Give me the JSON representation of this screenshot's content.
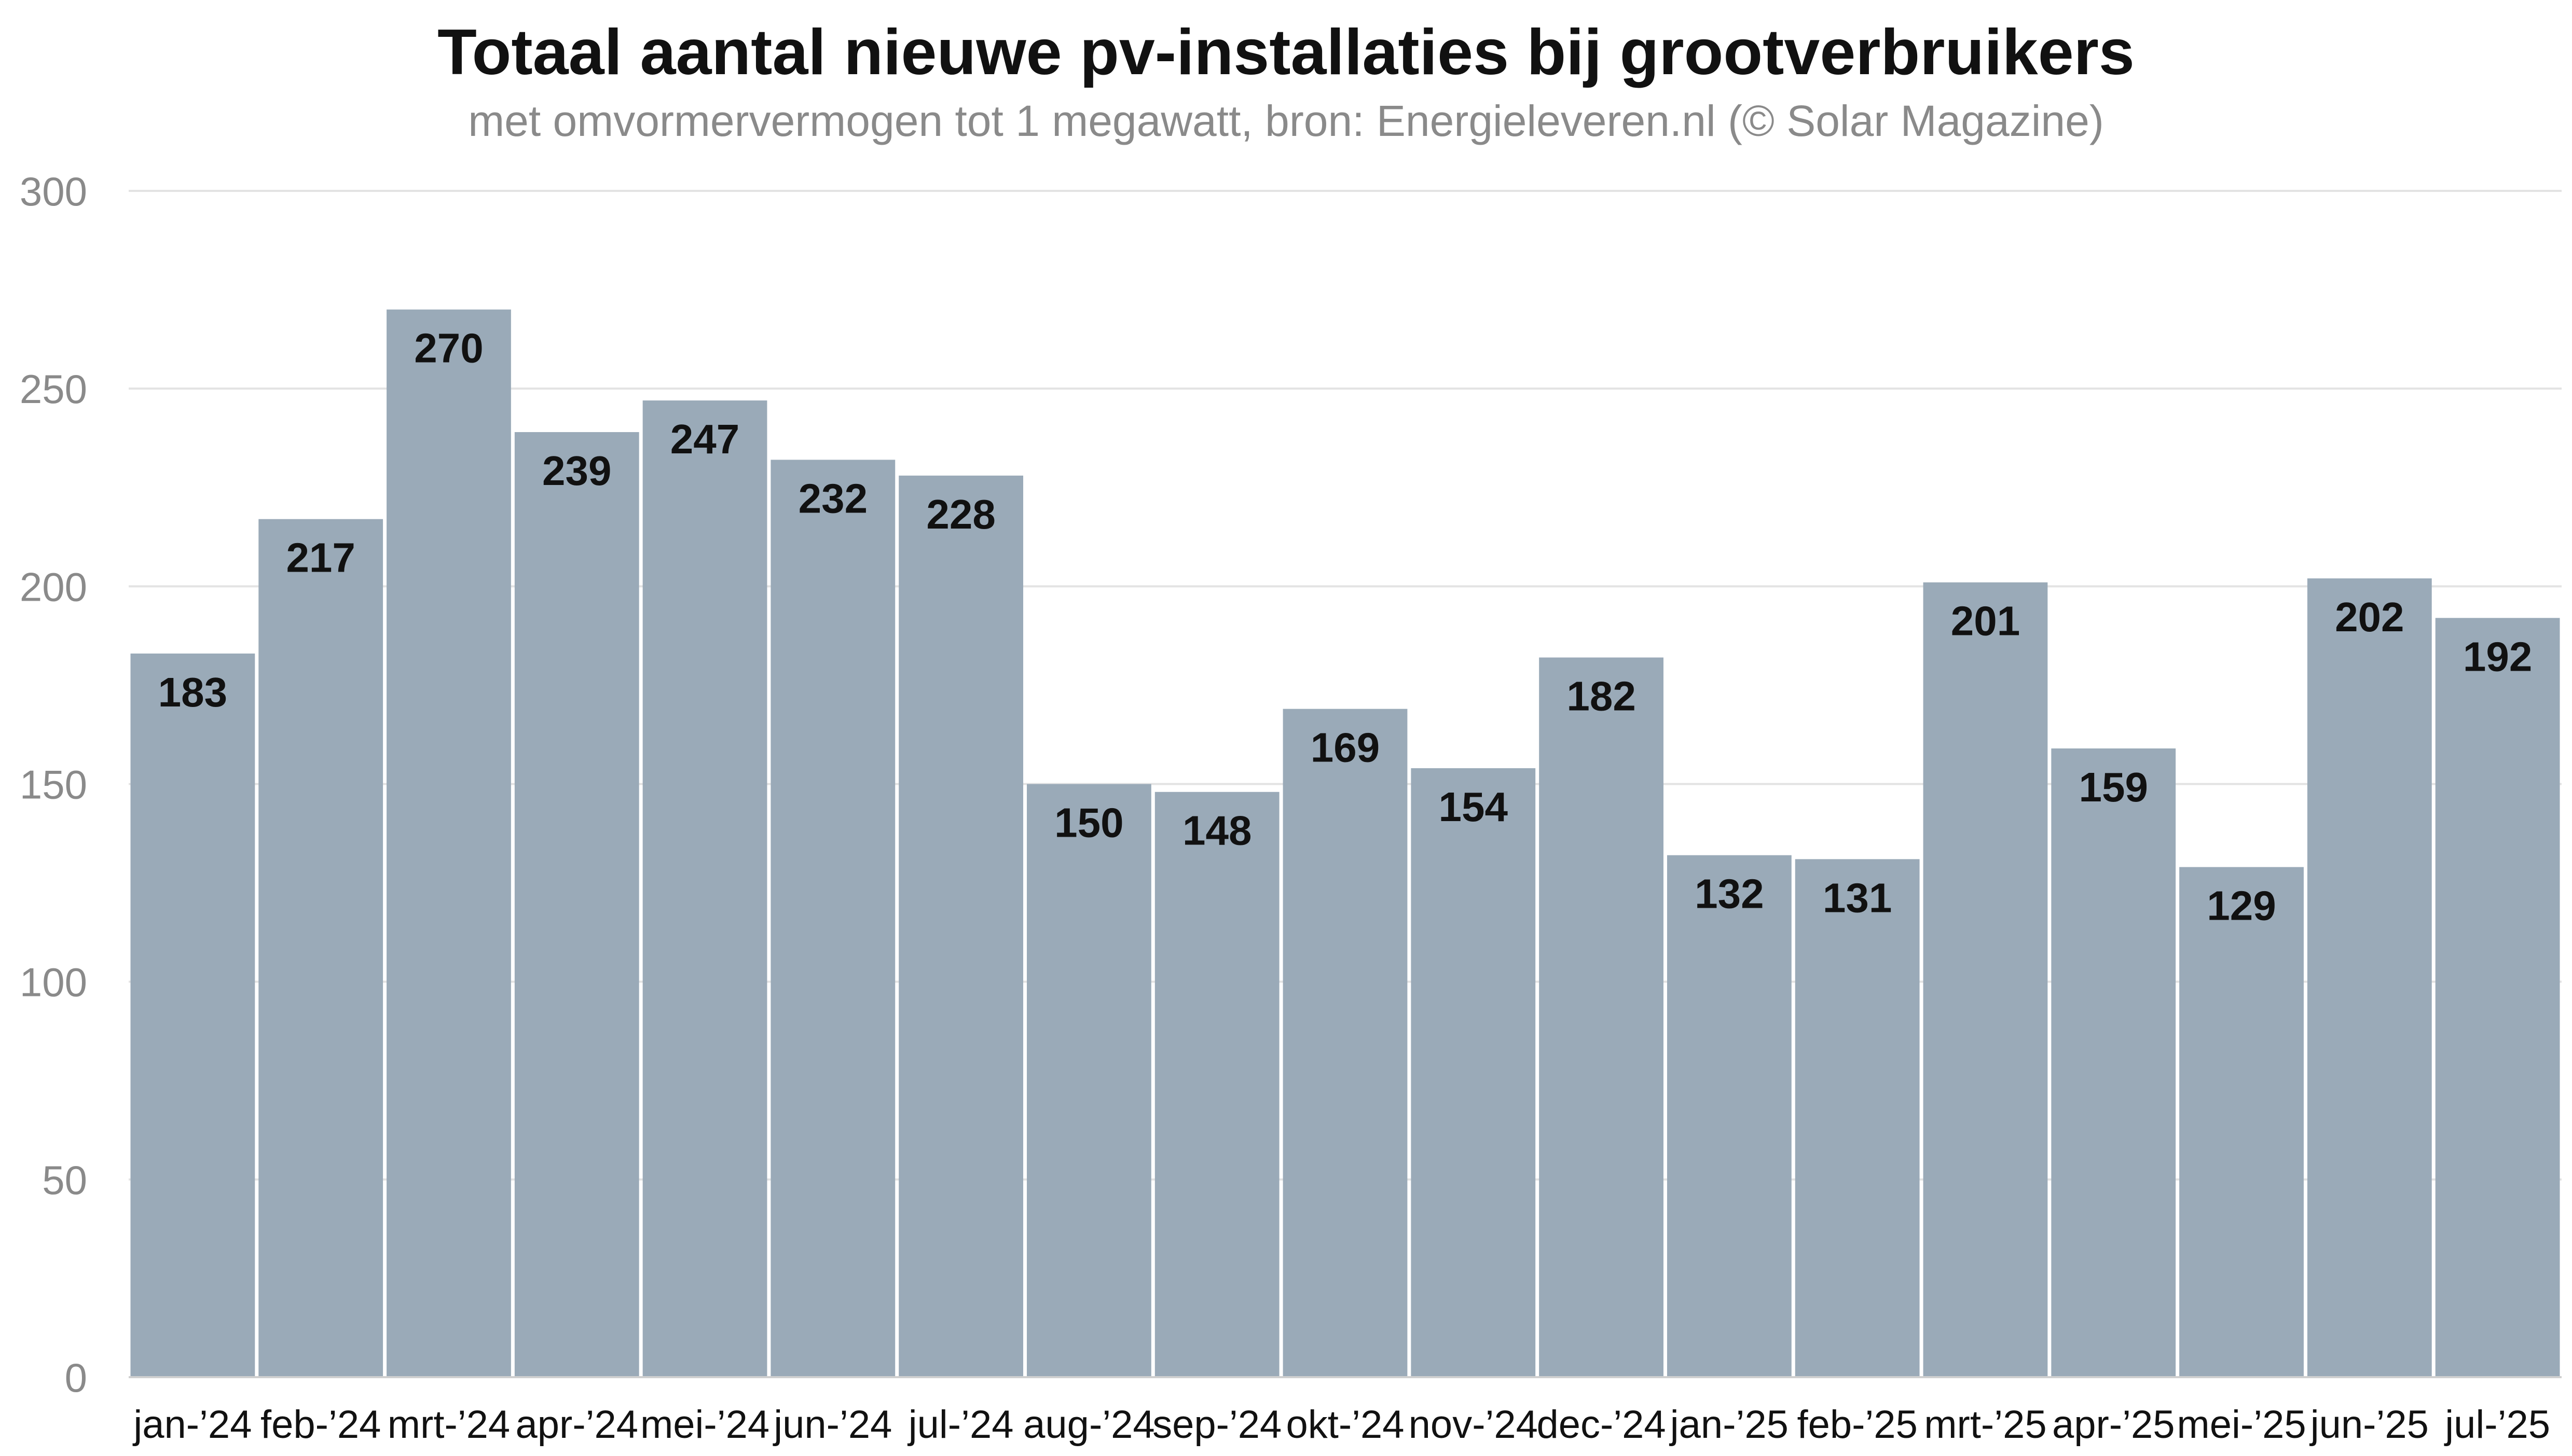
{
  "chart_data": {
    "type": "bar",
    "title": "Totaal aantal nieuwe pv-installaties bij grootverbruikers",
    "subtitle": "met omvormervermogen tot 1 megawatt, bron: Energieleveren.nl (© Solar Magazine)",
    "xlabel": "",
    "ylabel": "",
    "ylim": [
      0,
      300
    ],
    "yticks": [
      "0",
      "50",
      "100",
      "150",
      "200",
      "250",
      "300"
    ],
    "grid": true,
    "categories": [
      "jan-’24",
      "feb-’24",
      "mrt-’24",
      "apr-’24",
      "mei-’24",
      "jun-’24",
      "jul-’24",
      "aug-’24",
      "sep-’24",
      "okt-’24",
      "nov-’24",
      "dec-’24",
      "jan-’25",
      "feb-’25",
      "mrt-’25",
      "apr-’25",
      "mei-’25",
      "jun-’25",
      "jul-’25"
    ],
    "values": [
      183,
      217,
      270,
      239,
      247,
      232,
      228,
      150,
      148,
      169,
      154,
      182,
      132,
      131,
      201,
      159,
      129,
      202,
      192
    ],
    "value_labels": [
      "183",
      "217",
      "270",
      "239",
      "247",
      "232",
      "228",
      "150",
      "148",
      "169",
      "154",
      "182",
      "132",
      "131",
      "201",
      "159",
      "129",
      "202",
      "192"
    ],
    "colors": {
      "bar": "#9aaab8",
      "gridline": "#e3e3e3",
      "axis_text": "#8a8a8a",
      "label_text": "#111111",
      "title": "#111111",
      "subtitle": "#8a8a8a"
    }
  }
}
